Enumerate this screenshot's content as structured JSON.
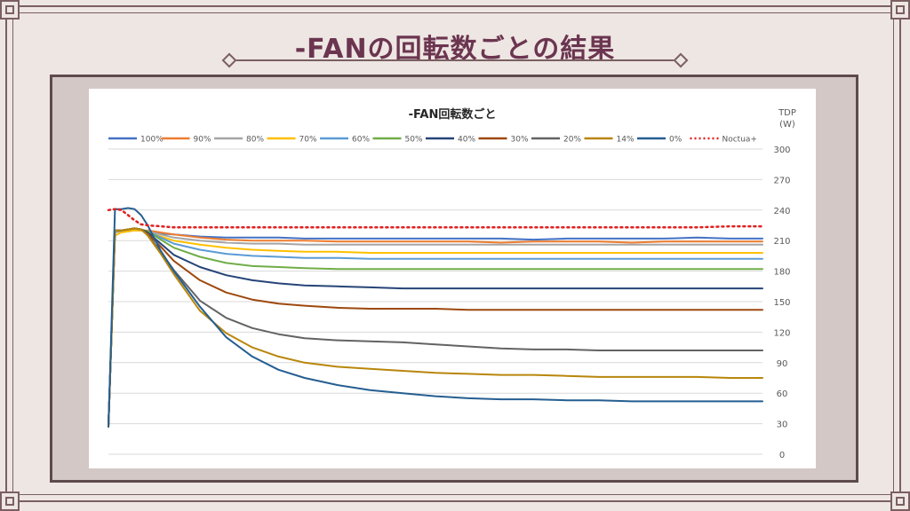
{
  "page": {
    "title": "-FANの回転数ごとの結果"
  },
  "chart_data": {
    "type": "line",
    "title": "-FAN回転数ごと",
    "xlabel": "",
    "ylabel": "TDP\n(W)",
    "ylabel_lines": [
      "TDP",
      "(W)"
    ],
    "ylim": [
      0,
      300
    ],
    "yticks": [
      0,
      30,
      60,
      90,
      120,
      150,
      180,
      210,
      240,
      270,
      300
    ],
    "yaxis_position": "right",
    "grid": true,
    "legend_position": "top",
    "x": [
      0,
      1,
      2,
      3,
      4,
      5,
      6,
      8,
      10,
      14,
      18,
      22,
      26,
      30,
      35,
      40,
      45,
      50,
      55,
      60,
      65,
      70,
      75,
      80,
      85,
      90,
      95,
      100
    ],
    "series": [
      {
        "name": "100%",
        "color": "#4472c4",
        "style": "solid",
        "values": [
          27,
          220,
          219,
          220,
          221,
          220,
          219,
          217,
          216,
          214,
          213,
          213,
          213,
          212,
          212,
          212,
          212,
          212,
          212,
          212,
          211,
          212,
          212,
          212,
          212,
          213,
          212,
          212
        ]
      },
      {
        "name": "90%",
        "color": "#ed7d31",
        "style": "solid",
        "values": [
          27,
          219,
          220,
          219,
          220,
          220,
          220,
          218,
          216,
          213,
          211,
          210,
          210,
          210,
          209,
          209,
          209,
          209,
          209,
          208,
          209,
          209,
          209,
          208,
          209,
          209,
          209,
          209
        ]
      },
      {
        "name": "80%",
        "color": "#a5a5a5",
        "style": "solid",
        "values": [
          27,
          218,
          219,
          219,
          220,
          220,
          219,
          216,
          213,
          210,
          208,
          207,
          207,
          206,
          206,
          206,
          206,
          206,
          206,
          206,
          206,
          206,
          206,
          206,
          206,
          206,
          206,
          206
        ]
      },
      {
        "name": "70%",
        "color": "#ffc000",
        "style": "solid",
        "values": [
          27,
          215,
          218,
          219,
          220,
          220,
          218,
          214,
          210,
          206,
          203,
          201,
          200,
          199,
          199,
          198,
          198,
          198,
          198,
          198,
          198,
          198,
          198,
          198,
          198,
          198,
          198,
          198
        ]
      },
      {
        "name": "60%",
        "color": "#5b9bd5",
        "style": "solid",
        "values": [
          27,
          220,
          220,
          221,
          222,
          221,
          219,
          213,
          207,
          201,
          197,
          195,
          194,
          193,
          193,
          192,
          192,
          192,
          192,
          192,
          192,
          192,
          192,
          192,
          192,
          192,
          192,
          192
        ]
      },
      {
        "name": "50%",
        "color": "#70ad47",
        "style": "solid",
        "values": [
          27,
          220,
          220,
          221,
          222,
          221,
          219,
          211,
          203,
          194,
          188,
          185,
          184,
          183,
          182,
          182,
          182,
          182,
          182,
          182,
          182,
          182,
          182,
          182,
          182,
          182,
          182,
          182
        ]
      },
      {
        "name": "40%",
        "color": "#264478",
        "style": "solid",
        "values": [
          27,
          220,
          220,
          221,
          222,
          221,
          218,
          207,
          196,
          184,
          176,
          171,
          168,
          166,
          165,
          164,
          163,
          163,
          163,
          163,
          163,
          163,
          163,
          163,
          163,
          163,
          163,
          163
        ]
      },
      {
        "name": "30%",
        "color": "#9e480e",
        "style": "solid",
        "values": [
          27,
          220,
          220,
          221,
          222,
          221,
          217,
          204,
          190,
          171,
          159,
          152,
          148,
          146,
          144,
          143,
          143,
          143,
          142,
          142,
          142,
          142,
          142,
          142,
          142,
          142,
          142,
          142
        ]
      },
      {
        "name": "20%",
        "color": "#636363",
        "style": "solid",
        "values": [
          27,
          220,
          220,
          221,
          222,
          221,
          216,
          199,
          181,
          151,
          134,
          124,
          118,
          114,
          112,
          111,
          110,
          108,
          106,
          104,
          103,
          103,
          102,
          102,
          102,
          102,
          102,
          102
        ]
      },
      {
        "name": "14%",
        "color": "#b8860b",
        "style": "solid",
        "values": [
          27,
          220,
          220,
          221,
          222,
          221,
          215,
          197,
          177,
          141,
          119,
          105,
          96,
          90,
          86,
          84,
          82,
          80,
          79,
          78,
          78,
          77,
          76,
          76,
          76,
          76,
          75,
          75
        ]
      },
      {
        "name": "0%",
        "color": "#255e91",
        "style": "solid",
        "values": [
          27,
          241,
          241,
          242,
          241,
          235,
          225,
          200,
          180,
          145,
          115,
          96,
          83,
          75,
          68,
          63,
          60,
          57,
          55,
          54,
          54,
          53,
          53,
          52,
          52,
          52,
          52,
          52
        ]
      },
      {
        "name": "Noctua+",
        "color": "#e02020",
        "style": "dotted",
        "values": [
          240,
          241,
          240,
          235,
          230,
          226,
          225,
          224,
          223,
          223,
          223,
          223,
          223,
          223,
          223,
          223,
          223,
          223,
          223,
          223,
          223,
          223,
          223,
          223,
          223,
          223,
          224,
          224
        ]
      }
    ]
  }
}
